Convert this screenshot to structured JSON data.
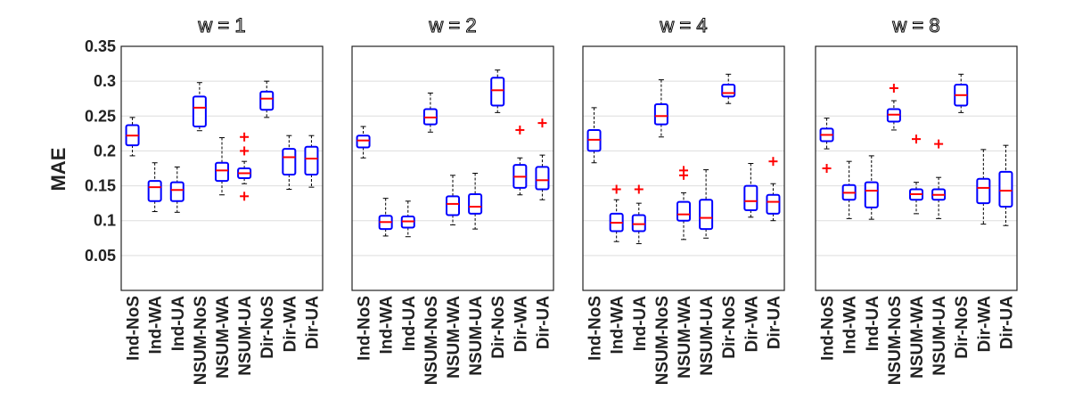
{
  "chart_data": {
    "type": "boxplot",
    "ylabel": "MAE",
    "ylim": [
      0,
      0.35
    ],
    "yticks": [
      0.05,
      0.1,
      0.15,
      0.2,
      0.25,
      0.3,
      0.35
    ],
    "ytick_labels": [
      "0.05",
      "0.1",
      "0.15",
      "0.2",
      "0.25",
      "0.3",
      "0.35"
    ],
    "grid": true,
    "categories": [
      "Ind-NoS",
      "Ind-WA",
      "Ind-UA",
      "NSUM-NoS",
      "NSUM-WA",
      "NSUM-UA",
      "Dir-NoS",
      "Dir-WA",
      "Dir-UA"
    ],
    "panels": [
      {
        "title": "w = 1",
        "boxes": [
          {
            "min": 0.193,
            "q1": 0.208,
            "median": 0.222,
            "q3": 0.237,
            "max": 0.248,
            "outliers": []
          },
          {
            "min": 0.113,
            "q1": 0.128,
            "median": 0.148,
            "q3": 0.157,
            "max": 0.183,
            "outliers": []
          },
          {
            "min": 0.112,
            "q1": 0.128,
            "median": 0.144,
            "q3": 0.155,
            "max": 0.177,
            "outliers": []
          },
          {
            "min": 0.229,
            "q1": 0.235,
            "median": 0.262,
            "q3": 0.278,
            "max": 0.298,
            "outliers": []
          },
          {
            "min": 0.137,
            "q1": 0.157,
            "median": 0.172,
            "q3": 0.183,
            "max": 0.219,
            "outliers": []
          },
          {
            "min": 0.153,
            "q1": 0.161,
            "median": 0.168,
            "q3": 0.175,
            "max": 0.185,
            "outliers": [
              0.135,
              0.2,
              0.22
            ]
          },
          {
            "min": 0.248,
            "q1": 0.259,
            "median": 0.275,
            "q3": 0.285,
            "max": 0.3,
            "outliers": []
          },
          {
            "min": 0.145,
            "q1": 0.166,
            "median": 0.191,
            "q3": 0.203,
            "max": 0.222,
            "outliers": []
          },
          {
            "min": 0.148,
            "q1": 0.166,
            "median": 0.189,
            "q3": 0.206,
            "max": 0.222,
            "outliers": []
          }
        ]
      },
      {
        "title": "w = 2",
        "boxes": [
          {
            "min": 0.19,
            "q1": 0.205,
            "median": 0.215,
            "q3": 0.222,
            "max": 0.235,
            "outliers": []
          },
          {
            "min": 0.078,
            "q1": 0.088,
            "median": 0.098,
            "q3": 0.107,
            "max": 0.132,
            "outliers": []
          },
          {
            "min": 0.077,
            "q1": 0.09,
            "median": 0.099,
            "q3": 0.106,
            "max": 0.128,
            "outliers": []
          },
          {
            "min": 0.227,
            "q1": 0.238,
            "median": 0.248,
            "q3": 0.26,
            "max": 0.283,
            "outliers": []
          },
          {
            "min": 0.094,
            "q1": 0.108,
            "median": 0.124,
            "q3": 0.135,
            "max": 0.165,
            "outliers": []
          },
          {
            "min": 0.088,
            "q1": 0.11,
            "median": 0.12,
            "q3": 0.138,
            "max": 0.168,
            "outliers": []
          },
          {
            "min": 0.255,
            "q1": 0.265,
            "median": 0.287,
            "q3": 0.305,
            "max": 0.316,
            "outliers": []
          },
          {
            "min": 0.137,
            "q1": 0.147,
            "median": 0.163,
            "q3": 0.18,
            "max": 0.19,
            "outliers": [
              0.23
            ]
          },
          {
            "min": 0.13,
            "q1": 0.145,
            "median": 0.158,
            "q3": 0.177,
            "max": 0.194,
            "outliers": [
              0.24
            ]
          }
        ]
      },
      {
        "title": "w = 4",
        "boxes": [
          {
            "min": 0.183,
            "q1": 0.2,
            "median": 0.216,
            "q3": 0.23,
            "max": 0.262,
            "outliers": []
          },
          {
            "min": 0.07,
            "q1": 0.085,
            "median": 0.097,
            "q3": 0.11,
            "max": 0.13,
            "outliers": [
              0.145
            ]
          },
          {
            "min": 0.067,
            "q1": 0.085,
            "median": 0.095,
            "q3": 0.108,
            "max": 0.125,
            "outliers": [
              0.145
            ]
          },
          {
            "min": 0.22,
            "q1": 0.238,
            "median": 0.25,
            "q3": 0.267,
            "max": 0.302,
            "outliers": []
          },
          {
            "min": 0.073,
            "q1": 0.1,
            "median": 0.109,
            "q3": 0.127,
            "max": 0.14,
            "outliers": [
              0.165,
              0.172
            ]
          },
          {
            "min": 0.075,
            "q1": 0.088,
            "median": 0.104,
            "q3": 0.13,
            "max": 0.173,
            "outliers": []
          },
          {
            "min": 0.268,
            "q1": 0.278,
            "median": 0.283,
            "q3": 0.295,
            "max": 0.31,
            "outliers": []
          },
          {
            "min": 0.105,
            "q1": 0.115,
            "median": 0.128,
            "q3": 0.15,
            "max": 0.182,
            "outliers": []
          },
          {
            "min": 0.1,
            "q1": 0.11,
            "median": 0.127,
            "q3": 0.137,
            "max": 0.153,
            "outliers": [
              0.185
            ]
          }
        ]
      },
      {
        "title": "w = 8",
        "boxes": [
          {
            "min": 0.203,
            "q1": 0.214,
            "median": 0.223,
            "q3": 0.232,
            "max": 0.247,
            "outliers": [
              0.175
            ]
          },
          {
            "min": 0.103,
            "q1": 0.13,
            "median": 0.14,
            "q3": 0.151,
            "max": 0.185,
            "outliers": []
          },
          {
            "min": 0.102,
            "q1": 0.119,
            "median": 0.143,
            "q3": 0.155,
            "max": 0.193,
            "outliers": []
          },
          {
            "min": 0.23,
            "q1": 0.242,
            "median": 0.252,
            "q3": 0.26,
            "max": 0.272,
            "outliers": [
              0.29
            ]
          },
          {
            "min": 0.11,
            "q1": 0.13,
            "median": 0.138,
            "q3": 0.145,
            "max": 0.155,
            "outliers": [
              0.217
            ]
          },
          {
            "min": 0.103,
            "q1": 0.13,
            "median": 0.137,
            "q3": 0.145,
            "max": 0.162,
            "outliers": [
              0.21
            ]
          },
          {
            "min": 0.255,
            "q1": 0.265,
            "median": 0.28,
            "q3": 0.295,
            "max": 0.31,
            "outliers": []
          },
          {
            "min": 0.095,
            "q1": 0.125,
            "median": 0.147,
            "q3": 0.16,
            "max": 0.202,
            "outliers": []
          },
          {
            "min": 0.093,
            "q1": 0.12,
            "median": 0.143,
            "q3": 0.17,
            "max": 0.208,
            "outliers": []
          }
        ]
      }
    ]
  },
  "colors": {
    "box": "#0000ff",
    "median": "#ff0000",
    "outlier": "#ff0000",
    "whisker": "#000000",
    "grid": "#dddddd",
    "frame": "#222222"
  }
}
